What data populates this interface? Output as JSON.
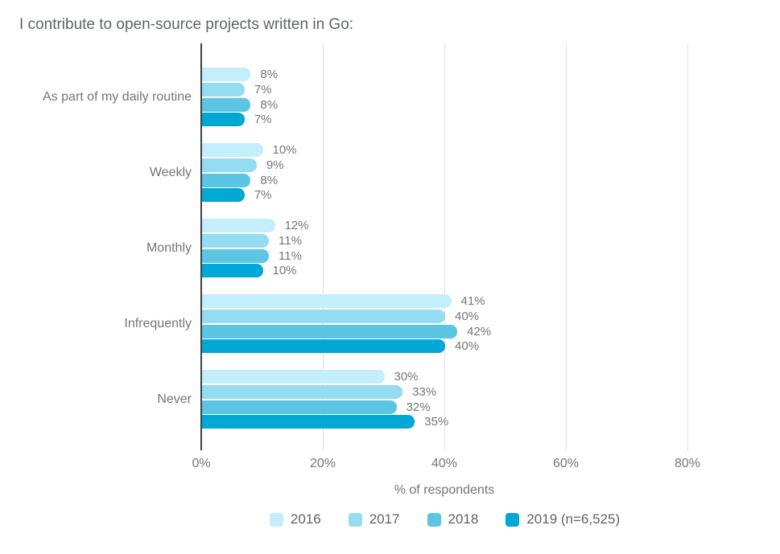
{
  "chart_data": {
    "type": "bar",
    "orientation": "horizontal",
    "title": "I contribute to open-source projects written in Go:",
    "xlabel": "% of respondents",
    "ylabel": "",
    "categories": [
      "As part of my daily routine",
      "Weekly",
      "Monthly",
      "Infrequently",
      "Never"
    ],
    "series": [
      {
        "name": "2016",
        "color": "#c3eefb",
        "values": [
          8,
          10,
          12,
          41,
          30
        ]
      },
      {
        "name": "2017",
        "color": "#94dcf1",
        "values": [
          7,
          9,
          11,
          40,
          33
        ]
      },
      {
        "name": "2018",
        "color": "#5bc5e3",
        "values": [
          8,
          8,
          11,
          42,
          32
        ]
      },
      {
        "name": "2019 (n=6,525)",
        "color": "#00a8d5",
        "values": [
          7,
          7,
          10,
          40,
          35
        ]
      }
    ],
    "value_label_format": "{v}%",
    "x_ticks": [
      "0%",
      "20%",
      "40%",
      "60%",
      "80%"
    ],
    "x_tick_values": [
      0,
      20,
      40,
      60,
      80
    ],
    "xlim": [
      0,
      88
    ],
    "grid": true,
    "legend_position": "bottom"
  },
  "colors": {
    "title_text": "#5f6368",
    "label_text": "#757575",
    "legend_text": "#616161",
    "gridline": "#e0e0e0",
    "axis_line": "#3c4043",
    "background": "#ffffff"
  }
}
